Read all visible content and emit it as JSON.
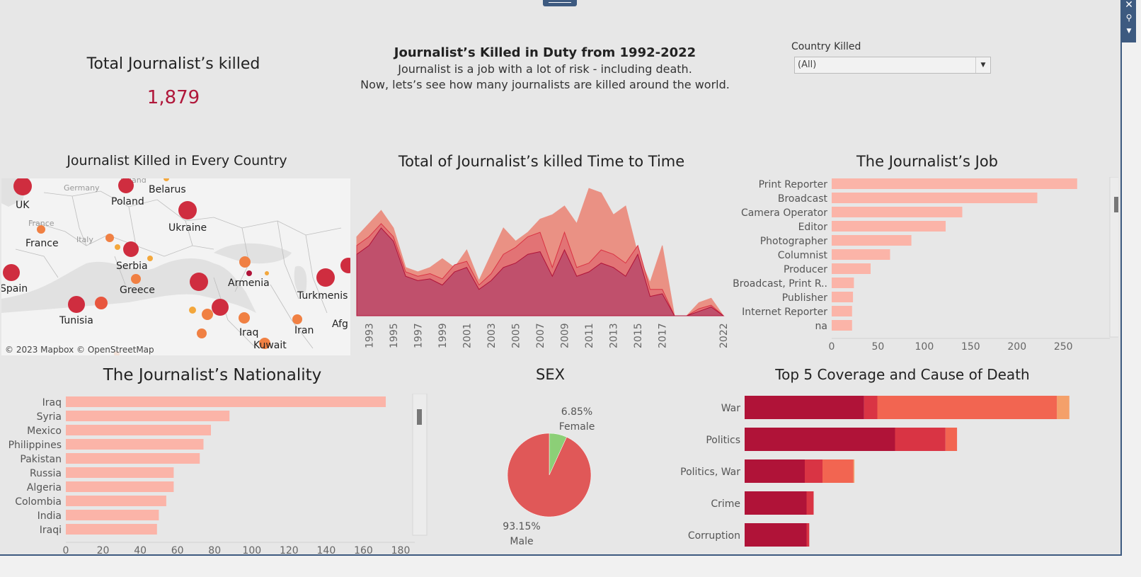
{
  "kpi": {
    "title": "Total Journalist’s killed",
    "value": "1,879"
  },
  "header": {
    "title": "Journalist’s Killed in Duty from 1992-2022",
    "line1": "Journalist is a job with a lot of risk - including death.",
    "line2": "Now, lets’s see how many journalists are killed around the world."
  },
  "filter": {
    "label": "Country Killed",
    "value": "(All)"
  },
  "colors": {
    "bar_light": "#fbb4a8",
    "dark_red": "#b01338",
    "red": "#d93444",
    "orange": "#f26551",
    "female": "#8ccf77",
    "male": "#e05858",
    "kpi": "#b0173a"
  },
  "map": {
    "title": "Journalist Killed in Every Country",
    "attribution": "© 2023 Mapbox © OpenStreetMap",
    "labels": [
      "UK",
      "Poland",
      "Belarus",
      "Ukraine",
      "France",
      "Serbia",
      "Spain",
      "Greece",
      "Armenia",
      "Turkmenis",
      "Tunisia",
      "Iraq",
      "Iran",
      "Afg",
      "Kuwait"
    ],
    "faint_labels": [
      "Germany",
      "Italy",
      "France",
      "Poland"
    ]
  },
  "chart_data": [
    {
      "type": "area",
      "title": "Total of Journalist’s killed Time to Time",
      "x": [
        1992,
        1993,
        1994,
        1995,
        1996,
        1997,
        1998,
        1999,
        2000,
        2001,
        2002,
        2003,
        2004,
        2005,
        2006,
        2007,
        2008,
        2009,
        2010,
        2011,
        2012,
        2013,
        2014,
        2015,
        2016,
        2017,
        2018,
        2019,
        2020,
        2021,
        2022
      ],
      "tick_labels": [
        "1993",
        "1995",
        "1997",
        "1999",
        "2001",
        "2003",
        "2005",
        "2007",
        "2009",
        "2011",
        "2013",
        "2015",
        "2017",
        "2022"
      ],
      "series": [
        {
          "values": [
            70,
            80,
            100,
            85,
            45,
            40,
            42,
            35,
            50,
            55,
            30,
            40,
            55,
            60,
            70,
            73,
            45,
            75,
            45,
            50,
            60,
            55,
            45,
            70,
            22,
            25,
            0,
            0,
            5,
            10,
            0
          ]
        },
        {
          "values": [
            80,
            90,
            105,
            90,
            50,
            45,
            48,
            42,
            58,
            62,
            35,
            48,
            70,
            78,
            90,
            95,
            55,
            95,
            55,
            60,
            75,
            70,
            60,
            80,
            30,
            30,
            0,
            0,
            8,
            12,
            0
          ]
        },
        {
          "values": [
            90,
            105,
            120,
            100,
            55,
            50,
            55,
            65,
            55,
            75,
            40,
            70,
            100,
            85,
            95,
            110,
            115,
            125,
            105,
            145,
            140,
            115,
            125,
            70,
            38,
            80,
            0,
            0,
            15,
            20,
            0
          ]
        }
      ]
    },
    {
      "type": "bar",
      "title": "The Journalist’s Job",
      "categories": [
        "Print Reporter",
        "Broadcast",
        "Camera Operator",
        "Editor",
        "Photographer",
        "Columnist",
        "Producer",
        "Broadcast, Print R..",
        "Publisher",
        "Internet Reporter",
        "na"
      ],
      "values": [
        265,
        222,
        141,
        123,
        86,
        63,
        42,
        24,
        23,
        22,
        22
      ],
      "xticks": [
        0,
        50,
        100,
        150,
        200,
        250
      ],
      "xlim": [
        0,
        285
      ]
    },
    {
      "type": "bar",
      "title": "The Journalist’s Nationality",
      "categories": [
        "Iraq",
        "Syria",
        "Mexico",
        "Philippines",
        "Pakistan",
        "Russia",
        "Algeria",
        "Colombia",
        "India",
        "Iraqi"
      ],
      "values": [
        172,
        88,
        78,
        74,
        72,
        58,
        58,
        54,
        50,
        49
      ],
      "xticks": [
        0,
        20,
        40,
        60,
        80,
        100,
        120,
        140,
        160,
        180
      ],
      "xlim": [
        0,
        180
      ]
    },
    {
      "type": "pie",
      "title": "SEX",
      "slices": [
        {
          "label": "Female",
          "pct_label": "6.85%",
          "value": 6.85
        },
        {
          "label": "Male",
          "pct_label": "93.15%",
          "value": 93.15
        }
      ]
    },
    {
      "type": "bar",
      "title": "Top 5 Coverage and Cause of Death",
      "categories": [
        "War",
        "Politics",
        "Politics, War",
        "Crime",
        "Corruption"
      ],
      "segments": [
        [
          135,
          15,
          203,
          14
        ],
        [
          170,
          57,
          13,
          0
        ],
        [
          68,
          20,
          35,
          1
        ],
        [
          70,
          8,
          0,
          0
        ],
        [
          70,
          3,
          0,
          0
        ]
      ],
      "xlim": [
        0,
        400
      ]
    }
  ]
}
